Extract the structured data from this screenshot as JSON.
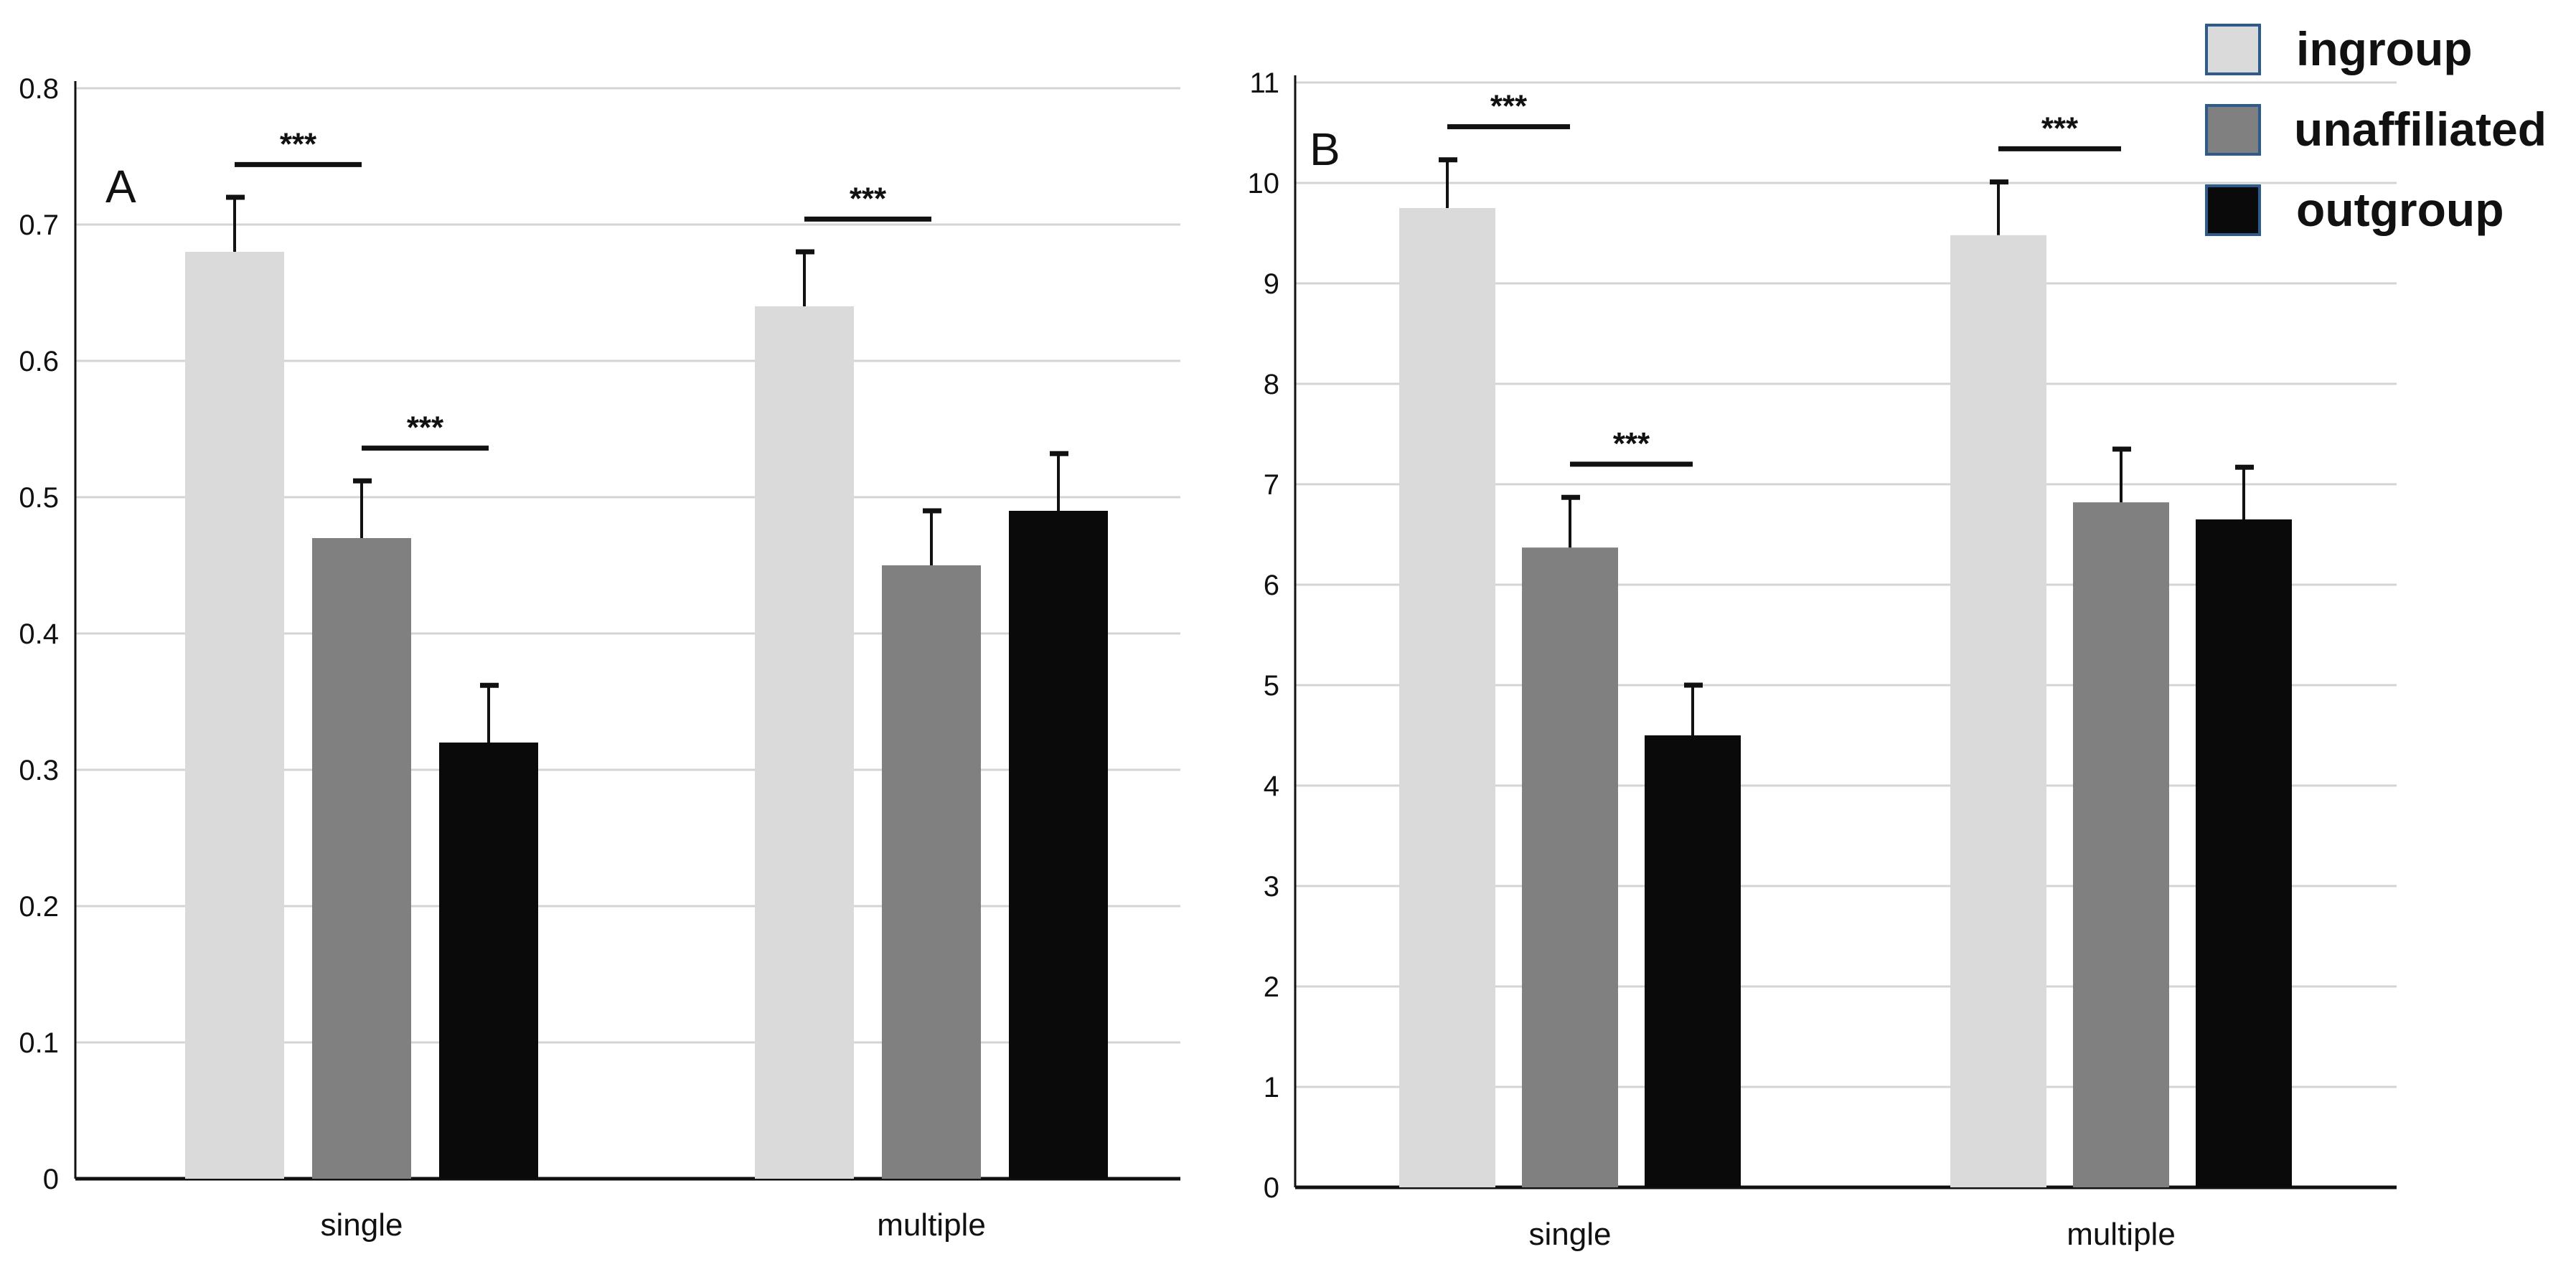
{
  "legend": {
    "entries": [
      {
        "label": "ingroup",
        "color": "#dadada"
      },
      {
        "label": "unaffiliated",
        "color": "#808080"
      },
      {
        "label": "outgroup",
        "color": "#0a0a0a"
      }
    ],
    "placement": "top-right"
  },
  "chart_data": [
    {
      "type": "bar",
      "panel": "A",
      "title": "",
      "xlabel": "",
      "ylabel": "",
      "categories": [
        "single",
        "multiple"
      ],
      "series": [
        {
          "name": "ingroup",
          "values": [
            0.68,
            0.64
          ],
          "errors": [
            0.04,
            0.04
          ]
        },
        {
          "name": "unaffiliated",
          "values": [
            0.47,
            0.45
          ],
          "errors": [
            0.042,
            0.04
          ]
        },
        {
          "name": "outgroup",
          "values": [
            0.32,
            0.49
          ],
          "errors": [
            0.042,
            0.042
          ]
        }
      ],
      "ylim": [
        0,
        0.8
      ],
      "yticks": [
        "0",
        "0.1",
        "0.2",
        "0.3",
        "0.4",
        "0.5",
        "0.6",
        "0.7",
        "0.8"
      ],
      "grid": true,
      "significance": [
        {
          "category": "single",
          "between": [
            "ingroup",
            "unaffiliated"
          ],
          "label": "***"
        },
        {
          "category": "single",
          "between": [
            "unaffiliated",
            "outgroup"
          ],
          "label": "***"
        },
        {
          "category": "multiple",
          "between": [
            "ingroup",
            "unaffiliated"
          ],
          "label": "***"
        }
      ]
    },
    {
      "type": "bar",
      "panel": "B",
      "title": "",
      "xlabel": "",
      "ylabel": "",
      "categories": [
        "single",
        "multiple"
      ],
      "series": [
        {
          "name": "ingroup",
          "values": [
            9.75,
            9.48
          ],
          "errors": [
            0.48,
            0.53
          ]
        },
        {
          "name": "unaffiliated",
          "values": [
            6.37,
            6.82
          ],
          "errors": [
            0.5,
            0.53
          ]
        },
        {
          "name": "outgroup",
          "values": [
            4.5,
            6.65
          ],
          "errors": [
            0.5,
            0.52
          ]
        }
      ],
      "ylim": [
        0,
        11
      ],
      "yticks": [
        "0",
        "1",
        "2",
        "3",
        "4",
        "5",
        "6",
        "7",
        "8",
        "9",
        "10",
        "11"
      ],
      "grid": true,
      "significance": [
        {
          "category": "single",
          "between": [
            "ingroup",
            "unaffiliated"
          ],
          "label": "***"
        },
        {
          "category": "single",
          "between": [
            "unaffiliated",
            "outgroup"
          ],
          "label": "***"
        },
        {
          "category": "multiple",
          "between": [
            "ingroup",
            "unaffiliated"
          ],
          "label": "***"
        }
      ]
    }
  ]
}
